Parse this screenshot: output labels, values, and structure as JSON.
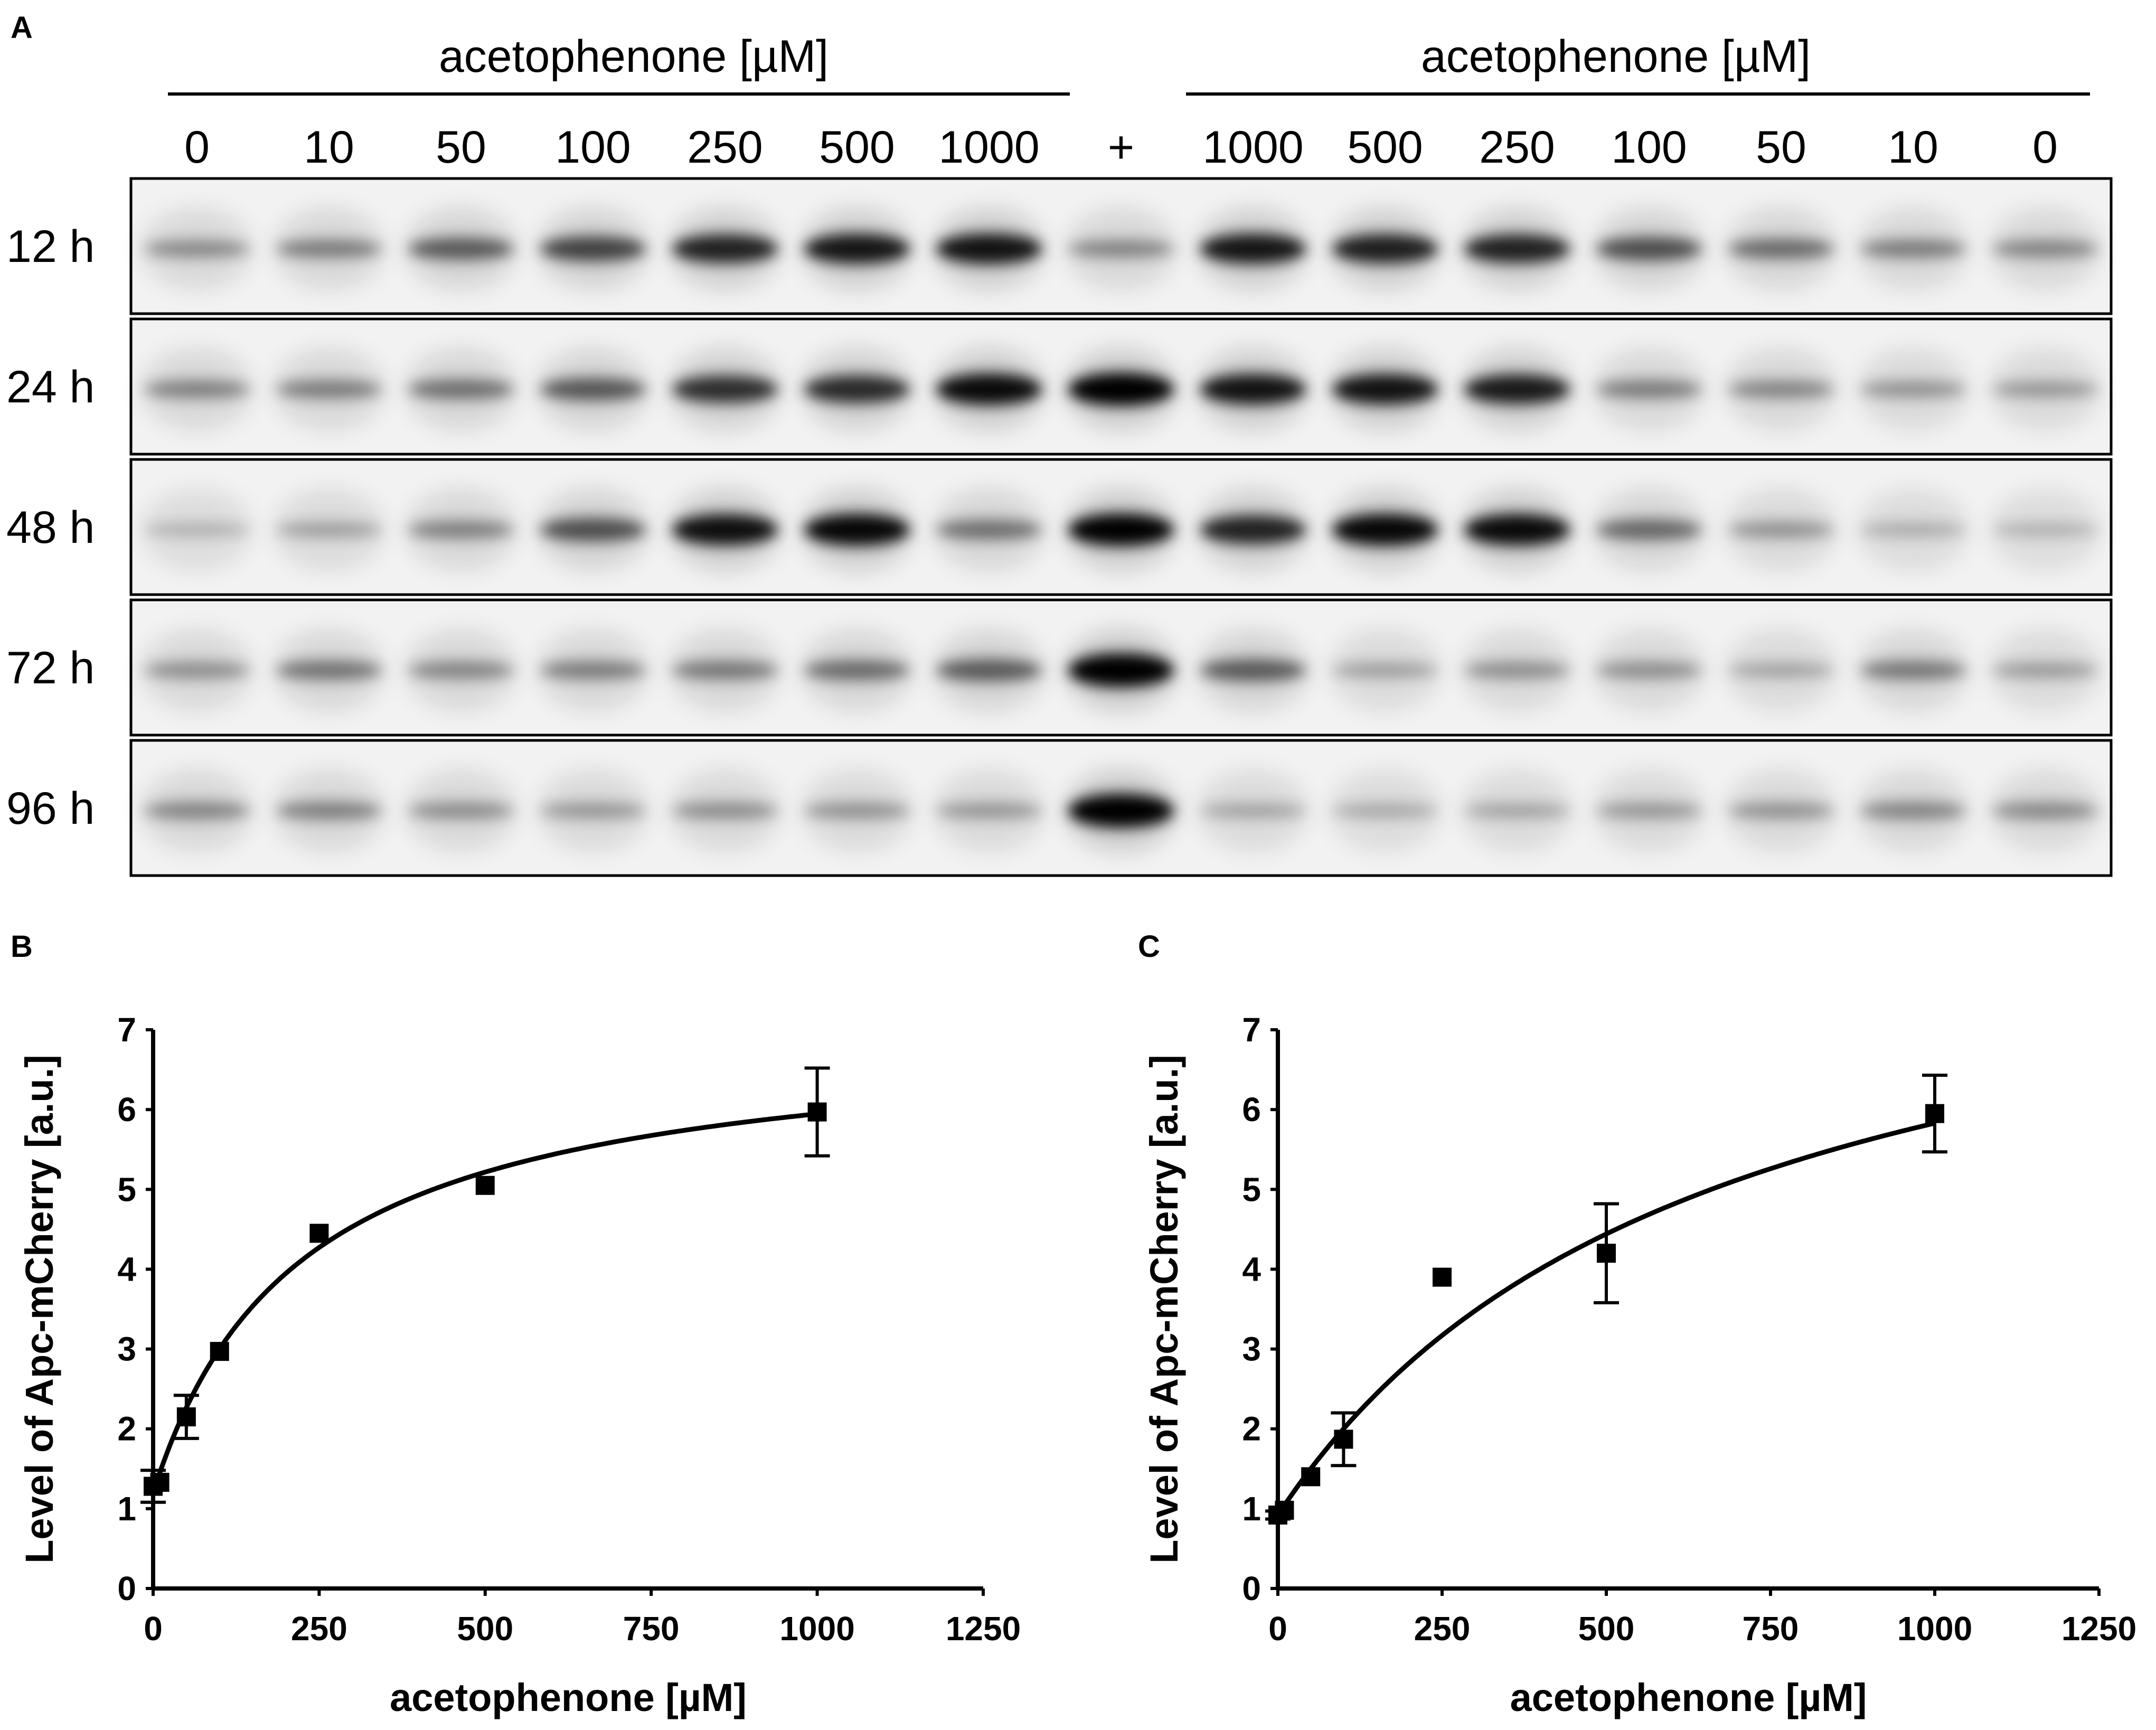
{
  "panel_labels": {
    "a": "A",
    "b": "B",
    "c": "C"
  },
  "blot": {
    "group_left_label": "acetophenone [µM]",
    "group_right_label": "acetophenone [µM]",
    "lanes": [
      "0",
      "10",
      "50",
      "100",
      "250",
      "500",
      "1000",
      "+",
      "1000",
      "500",
      "250",
      "100",
      "50",
      "10",
      "0"
    ],
    "rows": [
      {
        "label": "12 h",
        "intensities": [
          0.28,
          0.34,
          0.5,
          0.62,
          0.78,
          0.84,
          0.86,
          0.3,
          0.84,
          0.8,
          0.78,
          0.56,
          0.42,
          0.34,
          0.3
        ]
      },
      {
        "label": "24 h",
        "intensities": [
          0.32,
          0.34,
          0.4,
          0.52,
          0.72,
          0.74,
          0.9,
          0.97,
          0.86,
          0.86,
          0.82,
          0.34,
          0.3,
          0.24,
          0.22
        ]
      },
      {
        "label": "48 h",
        "intensities": [
          0.1,
          0.18,
          0.32,
          0.56,
          0.88,
          0.92,
          0.4,
          0.95,
          0.78,
          0.92,
          0.9,
          0.44,
          0.24,
          0.12,
          0.1
        ]
      },
      {
        "label": "72 h",
        "intensities": [
          0.26,
          0.38,
          0.3,
          0.34,
          0.36,
          0.42,
          0.5,
          1.0,
          0.5,
          0.18,
          0.26,
          0.26,
          0.16,
          0.36,
          0.2
        ]
      },
      {
        "label": "96 h",
        "intensities": [
          0.3,
          0.32,
          0.26,
          0.22,
          0.26,
          0.24,
          0.22,
          1.0,
          0.16,
          0.14,
          0.16,
          0.22,
          0.24,
          0.3,
          0.28
        ]
      }
    ]
  },
  "colors": {
    "ink": "#000000",
    "band": "#000000",
    "blot_bg": "#f2f2f2",
    "page_bg": "#ffffff"
  },
  "chart_data": [
    {
      "panel": "B",
      "type": "scatter",
      "title": "",
      "xlabel": "acetophenone [µM]",
      "ylabel": "Level of Apc-mCherry [a.u.]",
      "xlim": [
        0,
        1250
      ],
      "ylim": [
        0,
        7
      ],
      "xticks": [
        0,
        250,
        500,
        750,
        1000,
        1250
      ],
      "yticks": [
        0,
        1,
        2,
        3,
        4,
        5,
        6,
        7
      ],
      "grid": false,
      "marker": "square",
      "points": [
        {
          "x": 0,
          "y": 1.28,
          "err": 0.2
        },
        {
          "x": 10,
          "y": 1.33,
          "err": 0
        },
        {
          "x": 50,
          "y": 2.15,
          "err": 0.27
        },
        {
          "x": 100,
          "y": 2.97,
          "err": 0
        },
        {
          "x": 250,
          "y": 4.45,
          "err": 0
        },
        {
          "x": 500,
          "y": 5.05,
          "err": 0
        },
        {
          "x": 1000,
          "y": 5.97,
          "err": 0.55
        }
      ],
      "fit": {
        "model": "hyperbolic",
        "y0": 1.2,
        "vmax": 5.8,
        "k": 222
      }
    },
    {
      "panel": "C",
      "type": "scatter",
      "title": "",
      "xlabel": "acetophenone [µM]",
      "ylabel": "Level of Apc-mCherry [a.u.]",
      "xlim": [
        0,
        1250
      ],
      "ylim": [
        0,
        7
      ],
      "xticks": [
        0,
        250,
        500,
        750,
        1000,
        1250
      ],
      "yticks": [
        0,
        1,
        2,
        3,
        4,
        5,
        6,
        7
      ],
      "grid": false,
      "marker": "square",
      "points": [
        {
          "x": 0,
          "y": 0.92,
          "err": 0.05
        },
        {
          "x": 10,
          "y": 0.98,
          "err": 0
        },
        {
          "x": 50,
          "y": 1.4,
          "err": 0
        },
        {
          "x": 100,
          "y": 1.87,
          "err": 0.33
        },
        {
          "x": 250,
          "y": 3.9,
          "err": 0
        },
        {
          "x": 500,
          "y": 4.2,
          "err": 0.62
        },
        {
          "x": 1000,
          "y": 5.95,
          "err": 0.48
        }
      ],
      "fit": {
        "model": "hyperbolic",
        "y0": 0.92,
        "vmax": 8.1,
        "k": 650
      }
    }
  ]
}
